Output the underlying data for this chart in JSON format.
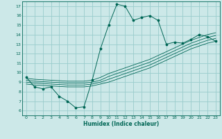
{
  "xlabel": "Humidex (Indice chaleur)",
  "bg_color": "#cce8e8",
  "grid_color": "#99cccc",
  "line_color": "#006655",
  "xlim": [
    -0.5,
    23.5
  ],
  "ylim": [
    5.5,
    17.5
  ],
  "xticks": [
    0,
    1,
    2,
    3,
    4,
    5,
    6,
    7,
    8,
    9,
    10,
    11,
    12,
    13,
    14,
    15,
    16,
    17,
    18,
    19,
    20,
    21,
    22,
    23
  ],
  "yticks": [
    6,
    7,
    8,
    9,
    10,
    11,
    12,
    13,
    14,
    15,
    16,
    17
  ],
  "main_x": [
    0,
    1,
    2,
    3,
    4,
    5,
    6,
    7,
    8,
    9,
    10,
    11,
    12,
    13,
    14,
    15,
    16,
    17,
    18,
    19,
    20,
    21,
    22,
    23
  ],
  "main_y": [
    9.5,
    8.5,
    8.3,
    8.5,
    7.5,
    7.0,
    6.3,
    6.4,
    9.2,
    12.5,
    15.0,
    17.2,
    17.0,
    15.5,
    15.8,
    16.0,
    15.5,
    13.0,
    13.2,
    13.1,
    13.5,
    14.0,
    13.8,
    13.3
  ],
  "band_lines": [
    [
      8.8,
      8.7,
      8.65,
      8.6,
      8.55,
      8.5,
      8.5,
      8.5,
      8.6,
      8.8,
      9.0,
      9.3,
      9.6,
      9.9,
      10.2,
      10.5,
      10.9,
      11.3,
      11.7,
      12.1,
      12.5,
      12.8,
      13.1,
      13.3
    ],
    [
      9.0,
      8.9,
      8.85,
      8.8,
      8.75,
      8.7,
      8.7,
      8.7,
      8.8,
      9.0,
      9.3,
      9.6,
      9.9,
      10.2,
      10.5,
      10.8,
      11.2,
      11.6,
      12.0,
      12.4,
      12.8,
      13.1,
      13.4,
      13.6
    ],
    [
      9.2,
      9.1,
      9.05,
      9.0,
      8.95,
      8.9,
      8.9,
      8.9,
      9.0,
      9.2,
      9.6,
      9.9,
      10.2,
      10.5,
      10.8,
      11.1,
      11.5,
      11.9,
      12.3,
      12.7,
      13.1,
      13.4,
      13.7,
      13.9
    ],
    [
      9.4,
      9.3,
      9.25,
      9.2,
      9.15,
      9.1,
      9.1,
      9.1,
      9.2,
      9.5,
      9.9,
      10.2,
      10.5,
      10.8,
      11.1,
      11.4,
      11.8,
      12.2,
      12.6,
      13.0,
      13.4,
      13.7,
      14.0,
      14.2
    ]
  ]
}
